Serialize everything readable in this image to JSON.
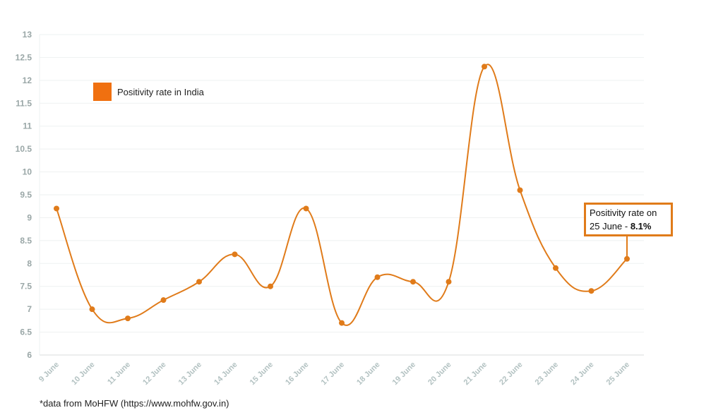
{
  "chart_data": {
    "type": "line",
    "categories": [
      "9 June",
      "10 June",
      "11 June",
      "12 June",
      "13 June",
      "14 June",
      "15 June",
      "16 June",
      "17 June",
      "18 June",
      "19 June",
      "20 June",
      "21 June",
      "22 June",
      "23 June",
      "24 June",
      "25 June"
    ],
    "series": [
      {
        "name": "Positivity rate in India",
        "values": [
          9.2,
          7.0,
          6.8,
          7.2,
          7.6,
          8.2,
          7.5,
          9.2,
          6.7,
          7.7,
          7.6,
          7.6,
          12.3,
          9.6,
          7.9,
          7.4,
          8.1
        ],
        "color": "#e07b1a"
      }
    ],
    "yticks": [
      "6",
      "6.5",
      "7",
      "7.5",
      "8",
      "8.5",
      "9",
      "9.5",
      "10",
      "10.5",
      "11",
      "11.5",
      "12",
      "12.5",
      "13"
    ],
    "ylim": [
      6,
      13
    ],
    "grid": true,
    "legend_placement": "top-left",
    "legend_color": "#f07010",
    "annotation": {
      "line1": "Positivity rate on",
      "line2_prefix": "25 June - ",
      "line2_bold": "8.1%"
    },
    "source": "*data from MoHFW (https://www.mohfw.gov.in)"
  }
}
